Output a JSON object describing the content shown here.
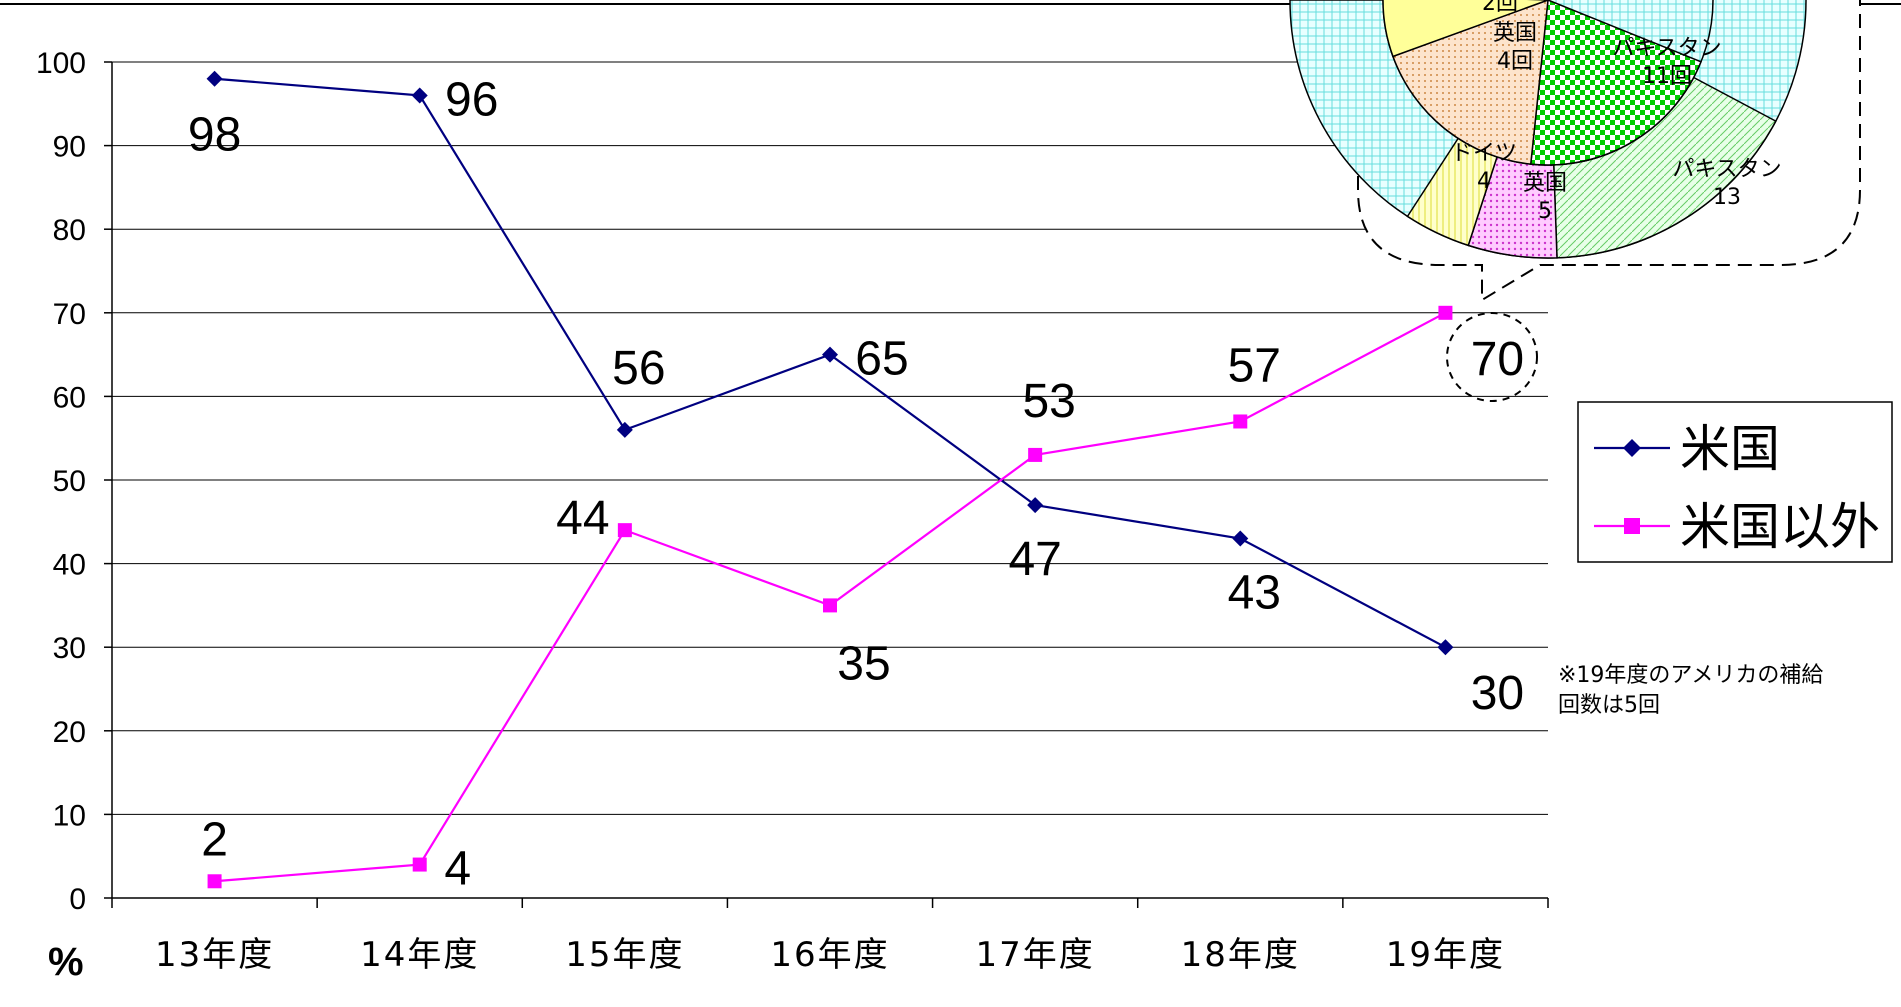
{
  "chart_data": {
    "type": "line",
    "categories": [
      "13年度",
      "14年度",
      "15年度",
      "16年度",
      "17年度",
      "18年度",
      "19年度"
    ],
    "series": [
      {
        "name": "米国",
        "values": [
          98,
          96,
          56,
          65,
          47,
          43,
          30
        ],
        "color": "#000080",
        "marker": "diamond"
      },
      {
        "name": "米国以外",
        "values": [
          2,
          4,
          44,
          35,
          53,
          57,
          70
        ],
        "color": "#ff00ff",
        "marker": "square"
      }
    ],
    "ylim": [
      0,
      100
    ],
    "yticks": [
      0,
      10,
      20,
      30,
      40,
      50,
      60,
      70,
      80,
      90,
      100
    ],
    "ylabel": "%",
    "grid": true,
    "legend_position": "right",
    "note": "※19年度のアメリカの補給\n回数は5回",
    "highlight_value": "70",
    "inset_pie": {
      "type": "pie",
      "inner_ring": [
        {
          "label": "2回",
          "color": "#ffff99"
        },
        {
          "label": "英国\n4回",
          "color": "#fcd5b4"
        },
        {
          "label": "パキスタン\n11回",
          "color": "#00dd00"
        }
      ],
      "outer_ring": [
        {
          "label": "ドイツ\n4",
          "color": "#ffffcc"
        },
        {
          "label": "英国\n5",
          "color": "#ff99ff"
        },
        {
          "label": "パキスタン\n13",
          "color": "#ccffcc"
        }
      ],
      "background_color": "#ccffff"
    }
  }
}
